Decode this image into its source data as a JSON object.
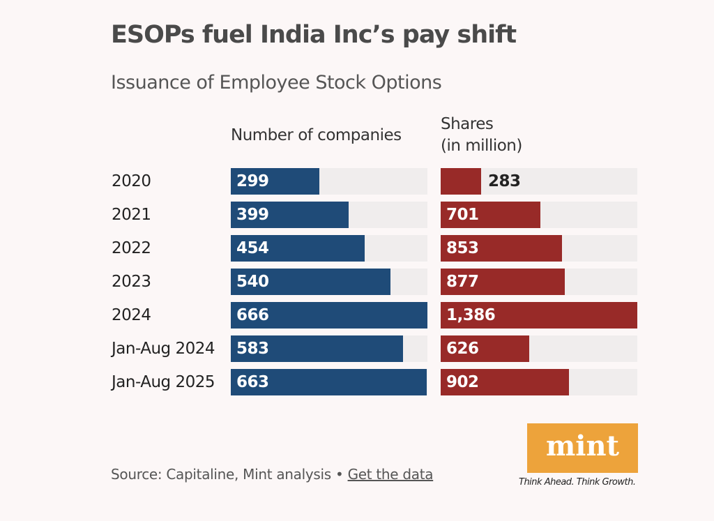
{
  "chart_data": {
    "type": "bar",
    "title": "ESOPs fuel India Inc’s pay shift",
    "subtitle": "Issuance of Employee Stock Options",
    "categories": [
      "2020",
      "2021",
      "2022",
      "2023",
      "2024",
      "Jan-Aug 2024",
      "Jan-Aug 2025"
    ],
    "series": [
      {
        "name": "Number of companies",
        "values": [
          299,
          399,
          454,
          540,
          666,
          583,
          663
        ],
        "labels": [
          "299",
          "399",
          "454",
          "540",
          "666",
          "583",
          "663"
        ],
        "color": "#1f4b78",
        "max": 666
      },
      {
        "name": "Shares (in million)",
        "name_lines": [
          "Shares",
          "(in million)"
        ],
        "values": [
          283,
          701,
          853,
          877,
          1386,
          626,
          902
        ],
        "labels": [
          "283",
          "701",
          "853",
          "877",
          "1,386",
          "626",
          "902"
        ],
        "color": "#982a28",
        "max": 1386
      }
    ]
  },
  "footer": {
    "source": "Source: Capitaline, Mint analysis •",
    "link": "Get the data"
  },
  "logo": {
    "text": "mint",
    "tagline": "Think Ahead. Think Growth.",
    "color": "#eda33b"
  }
}
